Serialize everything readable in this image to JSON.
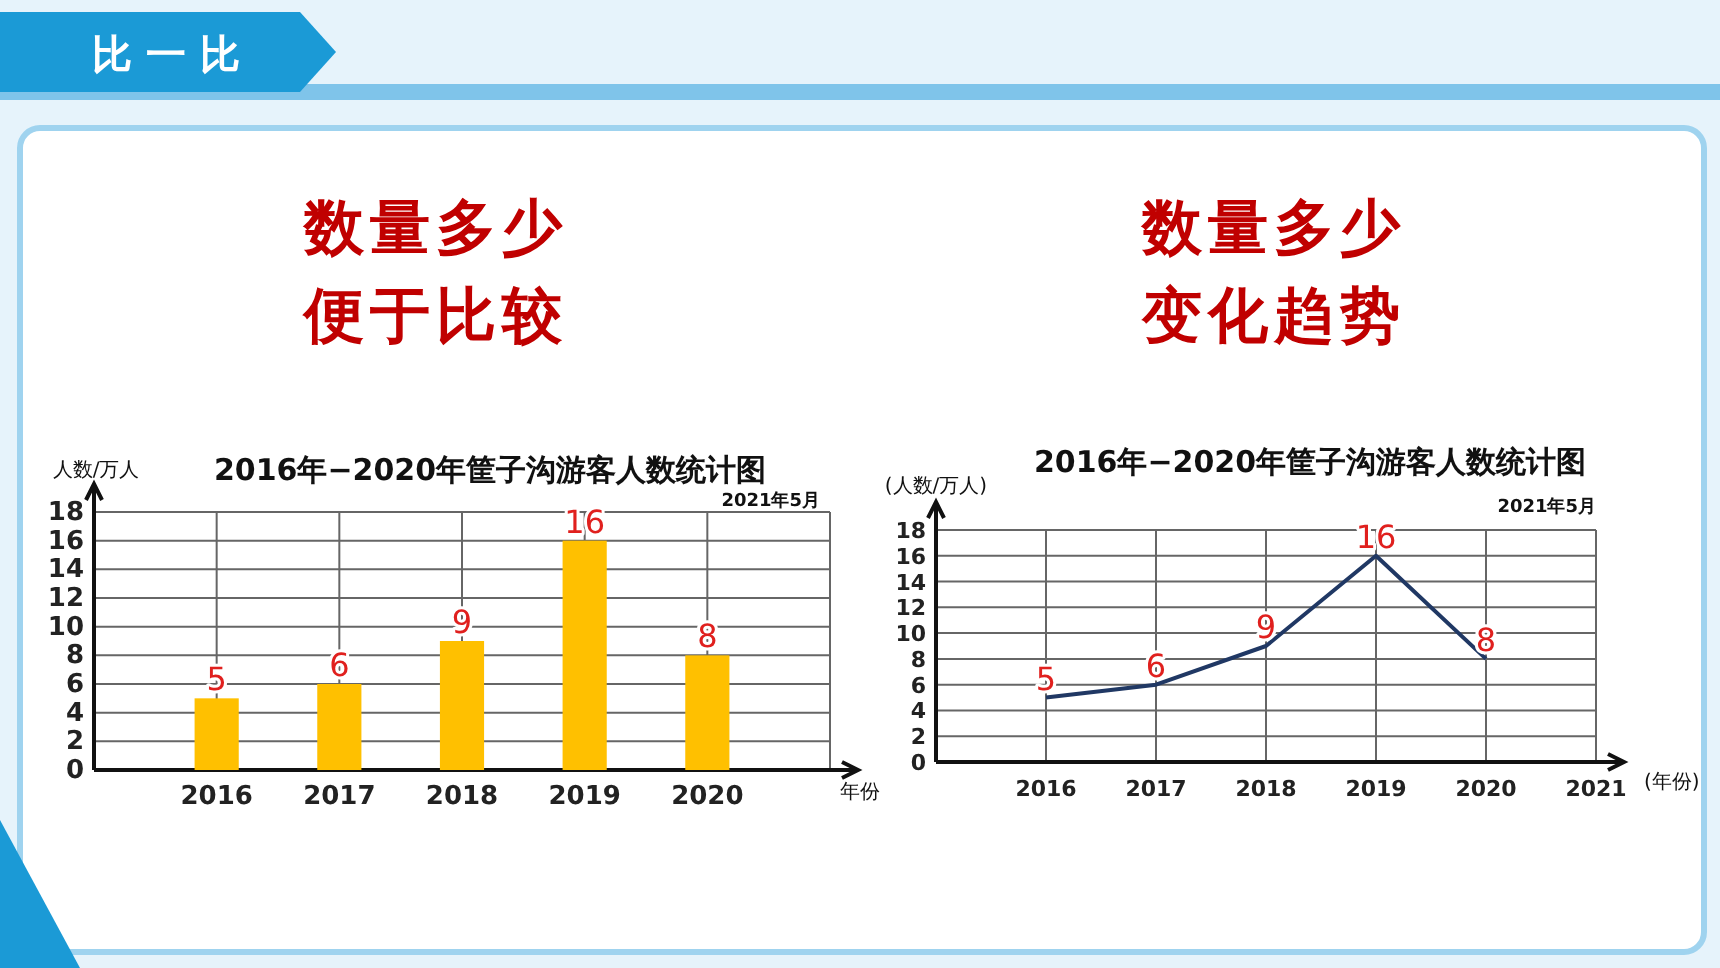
{
  "chart_data": [
    {
      "type": "bar",
      "title": "2016年−2020年筐子沟游客人数统计图",
      "subtitle": "2021年5月",
      "ylabel": "人数/万人",
      "xlabel": "年份",
      "annotations": [
        "比 一 比",
        "数量多少",
        "便于比较"
      ],
      "categories": [
        "2016",
        "2017",
        "2018",
        "2019",
        "2020"
      ],
      "series": [
        {
          "color": "#ffc000",
          "values": [
            5,
            6,
            9,
            16,
            8
          ]
        }
      ],
      "ylim": [
        0,
        18
      ],
      "yticks": [
        0,
        2,
        4,
        6,
        8,
        10,
        12,
        14,
        16,
        18
      ],
      "grid": true,
      "data_labels": true
    },
    {
      "type": "line",
      "title": "2016年−2020年筐子沟游客人数统计图",
      "subtitle": "2021年5月",
      "ylabel": "(人数/万人)",
      "xlabel": "(年份)",
      "annotations": [
        "数量多少",
        "变化趋势"
      ],
      "categories": [
        "2016",
        "2017",
        "2018",
        "2019",
        "2020",
        "2021"
      ],
      "series": [
        {
          "color": "#203864",
          "values": [
            5,
            6,
            9,
            16,
            8,
            null
          ]
        }
      ],
      "ylim": [
        0,
        18
      ],
      "yticks": [
        0,
        2,
        4,
        6,
        8,
        10,
        12,
        14,
        16,
        18
      ],
      "grid": true,
      "data_labels": true
    }
  ]
}
